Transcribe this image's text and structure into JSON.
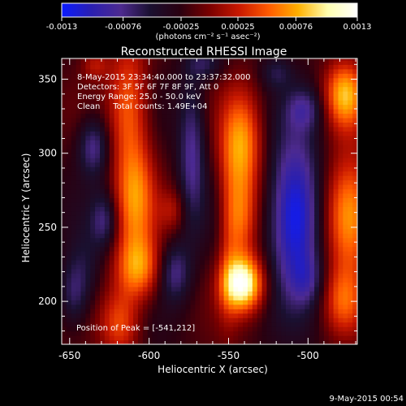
{
  "colorbar": {
    "tick_labels": [
      "-0.0013",
      "-0.00076",
      "-0.00025",
      "0.00025",
      "0.00076",
      "0.0013"
    ],
    "tick_values": [
      -0.0013,
      -0.00076,
      -0.00025,
      0.00025,
      0.00076,
      0.0013
    ],
    "range": [
      -0.0013,
      0.0013
    ],
    "units_text": "(photons cm⁻² s⁻¹ asec⁻²)",
    "colors": [
      "#0b1bff",
      "#2a1fb0",
      "#4d2a8f",
      "#1a1030",
      "#2a0010",
      "#7a0000",
      "#c81800",
      "#ff5a00",
      "#ffb000",
      "#ffffb0",
      "#ffffff"
    ]
  },
  "chart_data": {
    "type": "heatmap",
    "title": "Reconstructed RHESSI Image",
    "xlabel": "Heliocentric X (arcsec)",
    "ylabel": "Heliocentric Y (arcsec)",
    "xlim": [
      -655,
      -469
    ],
    "ylim": [
      171,
      364
    ],
    "x_ticks": [
      -650,
      -600,
      -550,
      -500
    ],
    "x_tick_labels": [
      "-650",
      "-600",
      "-550",
      "-500"
    ],
    "y_ticks": [
      200,
      250,
      300,
      350
    ],
    "y_tick_labels": [
      "200",
      "250",
      "300",
      "350"
    ],
    "annotations": [
      "8-May-2015 23:34:40.000 to 23:37:32.000",
      "Detectors: 3F 5F 6F 7F 8F 9F, Att 0",
      "Energy Range: 25.0 - 50.0 keV",
      "Clean     Total counts: 1.49E+04"
    ],
    "peak_label": "Position of Peak = [-541,212]",
    "peak": [
      -541,
      212
    ],
    "blobs": [
      {
        "x": -541,
        "y": 212,
        "sx": 9,
        "sy": 13,
        "a": 1.3
      },
      {
        "x": -542,
        "y": 305,
        "sx": 9,
        "sy": 26,
        "a": 0.85
      },
      {
        "x": -542,
        "y": 255,
        "sx": 7,
        "sy": 20,
        "a": 0.6
      },
      {
        "x": -550,
        "y": 240,
        "sx": 5,
        "sy": 40,
        "a": 0.3
      },
      {
        "x": -613,
        "y": 335,
        "sx": 9,
        "sy": 30,
        "a": 0.65
      },
      {
        "x": -609,
        "y": 270,
        "sx": 9,
        "sy": 28,
        "a": 0.75
      },
      {
        "x": -607,
        "y": 222,
        "sx": 10,
        "sy": 15,
        "a": 0.75
      },
      {
        "x": -618,
        "y": 185,
        "sx": 9,
        "sy": 16,
        "a": 0.6
      },
      {
        "x": -585,
        "y": 262,
        "sx": 6,
        "sy": 10,
        "a": 0.3
      },
      {
        "x": -474,
        "y": 258,
        "sx": 11,
        "sy": 28,
        "a": 0.95
      },
      {
        "x": -478,
        "y": 200,
        "sx": 9,
        "sy": 16,
        "a": 0.55
      },
      {
        "x": -477,
        "y": 340,
        "sx": 9,
        "sy": 16,
        "a": 0.9
      },
      {
        "x": -634,
        "y": 360,
        "sx": 6,
        "sy": 7,
        "a": 0.35
      },
      {
        "x": -508,
        "y": 258,
        "sx": 11,
        "sy": 36,
        "a": -1.05
      },
      {
        "x": -500,
        "y": 215,
        "sx": 7,
        "sy": 12,
        "a": -0.3
      },
      {
        "x": -635,
        "y": 305,
        "sx": 7,
        "sy": 14,
        "a": -0.55
      },
      {
        "x": -628,
        "y": 255,
        "sx": 6,
        "sy": 13,
        "a": -0.45
      },
      {
        "x": -573,
        "y": 300,
        "sx": 6,
        "sy": 35,
        "a": -0.55
      },
      {
        "x": -584,
        "y": 220,
        "sx": 7,
        "sy": 14,
        "a": -0.5
      },
      {
        "x": -648,
        "y": 205,
        "sx": 6,
        "sy": 16,
        "a": -0.4
      },
      {
        "x": -640,
        "y": 220,
        "sx": 7,
        "sy": 20,
        "a": -0.25
      },
      {
        "x": -502,
        "y": 330,
        "sx": 8,
        "sy": 10,
        "a": -0.4
      },
      {
        "x": -565,
        "y": 360,
        "sx": 8,
        "sy": 7,
        "a": -0.35
      },
      {
        "x": -520,
        "y": 355,
        "sx": 7,
        "sy": 8,
        "a": -0.3
      }
    ]
  },
  "footer": {
    "timestamp": "9-May-2015 00:54"
  }
}
